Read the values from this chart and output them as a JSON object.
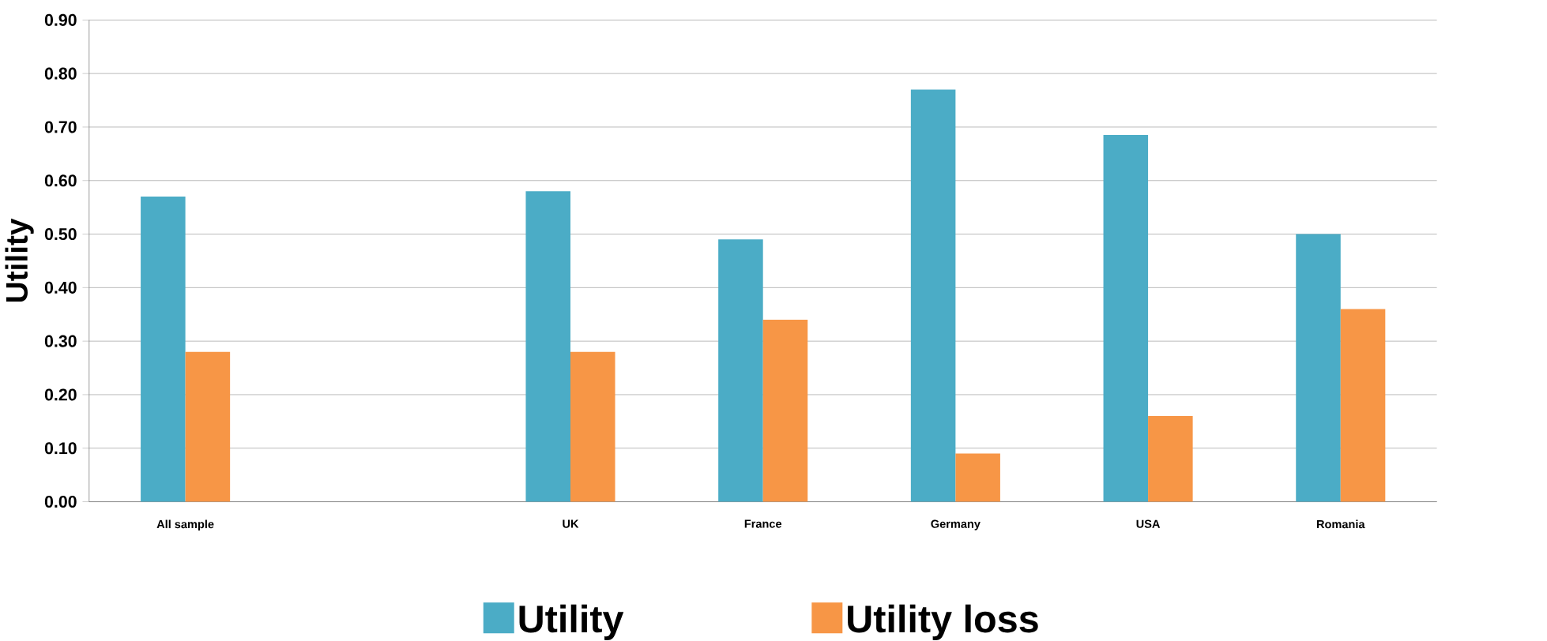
{
  "chart_data": {
    "type": "bar",
    "ylabel": "Utility",
    "categories": [
      "All sample",
      null,
      "UK",
      "France",
      "Germany",
      "USA",
      "Romania"
    ],
    "series": [
      {
        "name": "Utility",
        "color": "#4bacc6",
        "values": [
          0.57,
          null,
          0.58,
          0.49,
          0.77,
          0.685,
          0.5
        ]
      },
      {
        "name": "Utility loss",
        "color": "#f79646",
        "values": [
          0.28,
          null,
          0.28,
          0.34,
          0.09,
          0.16,
          0.36
        ]
      }
    ],
    "ylim": [
      0,
      0.9
    ],
    "yticks": [
      {
        "value": 0,
        "label": "0.00"
      },
      {
        "value": 0.1,
        "label": "0.10"
      },
      {
        "value": 0.2,
        "label": "0.20"
      },
      {
        "value": 0.3,
        "label": "0.30"
      },
      {
        "value": 0.4,
        "label": "0.40"
      },
      {
        "value": 0.5,
        "label": "0.50"
      },
      {
        "value": 0.6,
        "label": "0.60"
      },
      {
        "value": 0.7,
        "label": "0.70"
      },
      {
        "value": 0.8,
        "label": "0.80"
      },
      {
        "value": 0.9,
        "label": "0.90"
      }
    ],
    "grid": "y",
    "legend": "bottom"
  }
}
